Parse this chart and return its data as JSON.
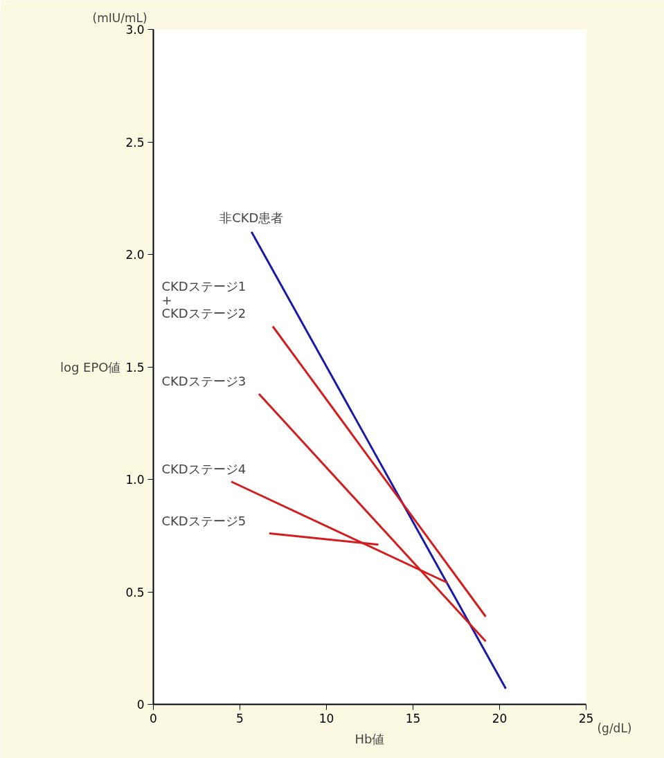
{
  "chart_data": {
    "type": "line",
    "xlabel": "Hb値",
    "ylabel": "log EPO値",
    "annotations": [
      "(mIU/mL)",
      "(g/dL)"
    ],
    "xlim": [
      0,
      25
    ],
    "ylim": [
      0,
      3.0
    ],
    "xticks": [
      0,
      5,
      10,
      15,
      20,
      25
    ],
    "yticks": [
      0,
      0.5,
      {
        "value": 1,
        "label": "1.0"
      },
      1.5,
      {
        "value": 2,
        "label": "2.0"
      },
      2.5,
      {
        "value": 3,
        "label": "3.0"
      }
    ],
    "grid": false,
    "legend": false,
    "marker": "none",
    "line_style": "solid",
    "series": [
      {
        "name": "非CKD患者",
        "color": "#1a1aa6",
        "x": [
          5.67,
          20.36
        ],
        "values": [
          2.1,
          0.07
        ]
      },
      {
        "name": "CKDステージ1\n+\nCKDステージ2",
        "color": "#d21e1e",
        "x": [
          6.9,
          19.2
        ],
        "values": [
          1.68,
          0.39
        ]
      },
      {
        "name": "CKDステージ3",
        "color": "#d21e1e",
        "x": [
          6.1,
          19.2
        ],
        "values": [
          1.38,
          0.28
        ]
      },
      {
        "name": "CKDステージ4",
        "color": "#d21e1e",
        "x": [
          4.5,
          17.0
        ],
        "values": [
          0.99,
          0.54
        ]
      },
      {
        "name": "CKDステージ5",
        "color": "#d21e1e",
        "x": [
          6.7,
          13.0
        ],
        "values": [
          0.76,
          0.71
        ]
      }
    ]
  }
}
